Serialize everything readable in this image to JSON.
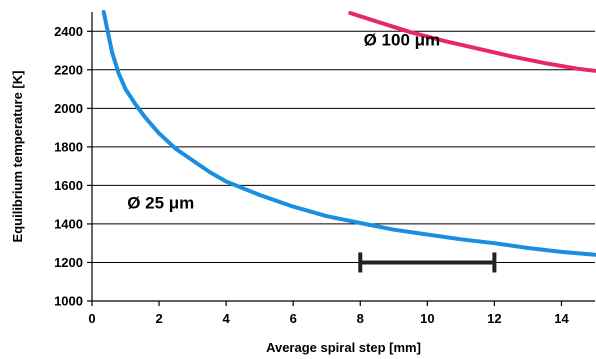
{
  "chart_data": {
    "type": "line",
    "xlabel": "Average spiral step [mm]",
    "ylabel": "Equilibrium temperature [K]",
    "xlim": [
      0,
      15
    ],
    "ylim": [
      1000,
      2500
    ],
    "x_ticks": [
      "0",
      "2",
      "4",
      "6",
      "8",
      "10",
      "12",
      "14"
    ],
    "y_ticks": [
      "1000",
      "1200",
      "1400",
      "1600",
      "1800",
      "2000",
      "2200",
      "2400"
    ],
    "grid": "horizontal",
    "series": [
      {
        "name": "Ø 25 μm",
        "color": "#1a8fe0",
        "x": [
          0.35,
          0.6,
          0.8,
          1.0,
          1.3,
          1.6,
          2.0,
          2.5,
          3.0,
          3.5,
          4.0,
          5.0,
          6.0,
          7.0,
          8.0,
          9.0,
          10.0,
          11.0,
          12.0,
          13.0,
          14.0,
          15.0
        ],
        "y": [
          2500,
          2290,
          2180,
          2100,
          2020,
          1950,
          1870,
          1790,
          1730,
          1670,
          1620,
          1550,
          1490,
          1440,
          1405,
          1370,
          1345,
          1320,
          1300,
          1275,
          1255,
          1240
        ]
      },
      {
        "name": "Ø 100 μm",
        "color": "#e6266f",
        "x": [
          7.7,
          8.5,
          9.5,
          10.5,
          11.5,
          12.5,
          13.5,
          14.5,
          15.0
        ],
        "y": [
          2495,
          2450,
          2395,
          2350,
          2310,
          2270,
          2235,
          2205,
          2195
        ]
      }
    ],
    "annotations": [
      {
        "text": "Ø 100 μm",
        "x": 8.1,
        "y": 2325,
        "color": "#000000"
      },
      {
        "text": "Ø 25 μm",
        "x": 1.05,
        "y": 1480,
        "color": "#000000"
      }
    ],
    "range_marker": {
      "x_start": 8,
      "x_end": 12,
      "y": 1200,
      "color": "#222222"
    }
  }
}
